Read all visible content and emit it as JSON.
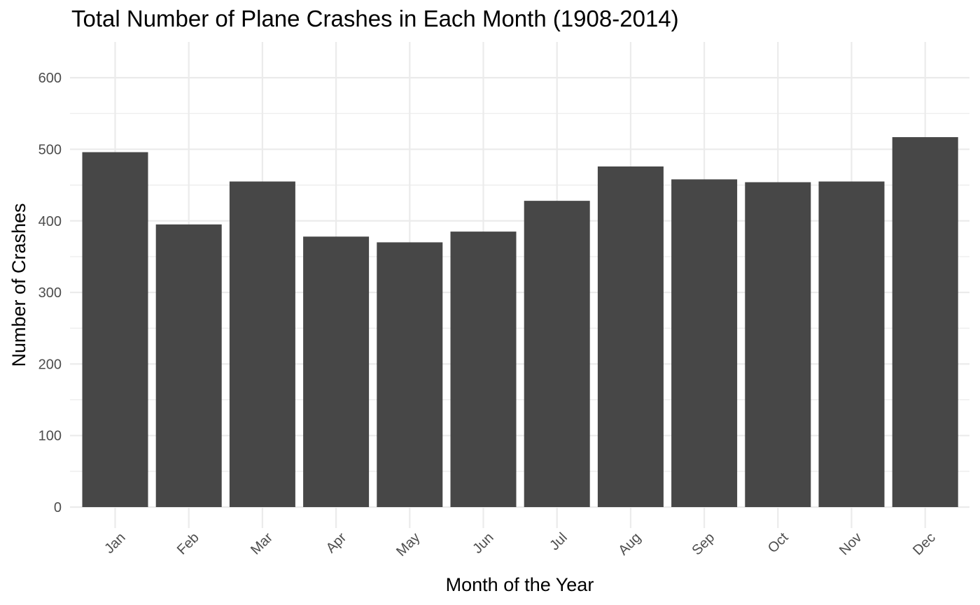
{
  "chart_data": {
    "type": "bar",
    "title": "Total Number of Plane Crashes in Each Month (1908-2014)",
    "xlabel": "Month of the Year",
    "ylabel": "Number of Crashes",
    "categories": [
      "Jan",
      "Feb",
      "Mar",
      "Apr",
      "May",
      "Jun",
      "Jul",
      "Aug",
      "Sep",
      "Oct",
      "Nov",
      "Dec"
    ],
    "values": [
      496,
      395,
      455,
      378,
      370,
      385,
      428,
      476,
      458,
      454,
      455,
      517
    ],
    "ylim": [
      0,
      650
    ],
    "yticks": [
      0,
      100,
      200,
      300,
      400,
      500,
      600
    ],
    "grid": true,
    "bar_color": "#474747",
    "grid_color": "#ebebeb"
  }
}
